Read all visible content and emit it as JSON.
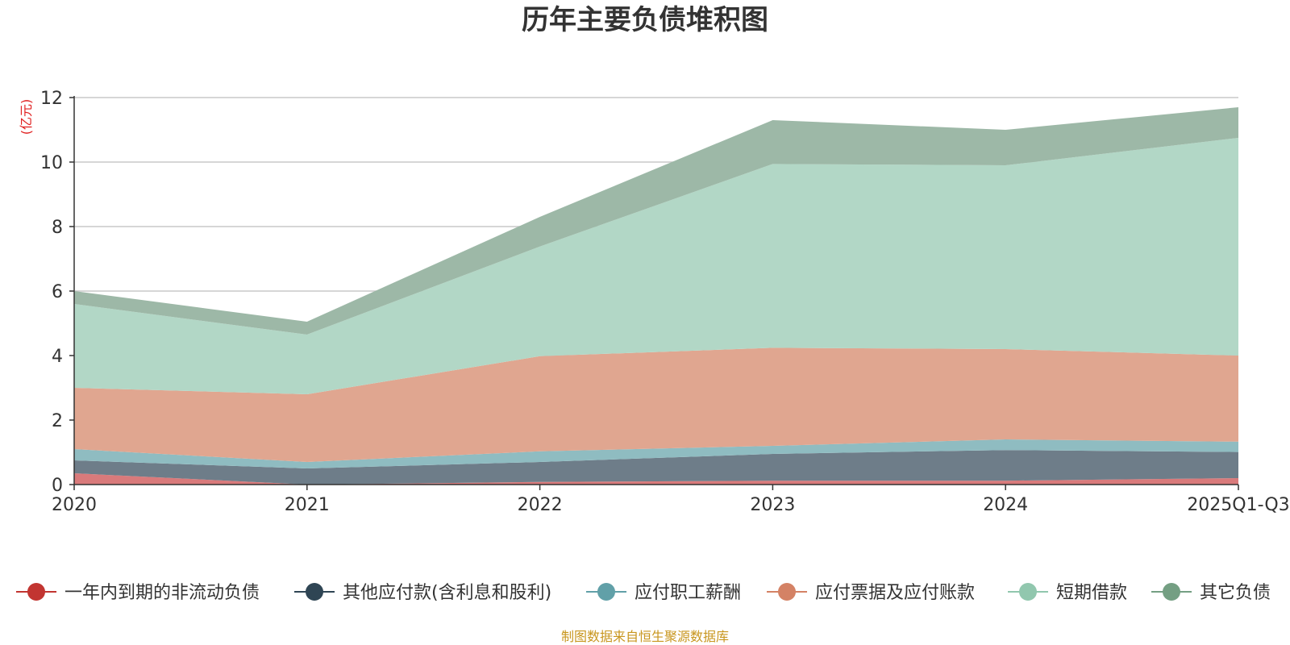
{
  "chart_data": {
    "type": "area",
    "stacked": true,
    "title": "历年主要负债堆积图",
    "ylabel": "(亿元)",
    "xlabel": "",
    "ylim": [
      0,
      12
    ],
    "yticks": [
      0,
      2,
      4,
      6,
      8,
      10,
      12
    ],
    "categories": [
      "2020",
      "2021",
      "2022",
      "2023",
      "2024",
      "2025Q1-Q3"
    ],
    "legend_position": "bottom",
    "grid": true,
    "series": [
      {
        "name": "一年内到期的非流动负债",
        "color": "#c23531",
        "area_color": "#d97a7b",
        "values": [
          0.35,
          0.0,
          0.08,
          0.12,
          0.12,
          0.2
        ]
      },
      {
        "name": "其他应付款(含利息和股利)",
        "color": "#2f4554",
        "area_color": "#6e7d89",
        "values": [
          0.4,
          0.5,
          0.62,
          0.83,
          0.95,
          0.81
        ]
      },
      {
        "name": "应付职工薪酬",
        "color": "#61a0a8",
        "area_color": "#8fbcc1",
        "values": [
          0.35,
          0.2,
          0.33,
          0.25,
          0.33,
          0.32
        ]
      },
      {
        "name": "应付票据及应付账款",
        "color": "#d48265",
        "area_color": "#e0a690",
        "values": [
          1.9,
          2.1,
          2.95,
          3.04,
          2.8,
          2.67
        ]
      },
      {
        "name": "短期借款",
        "color": "#91c7ae",
        "area_color": "#b2d7c6",
        "values": [
          2.6,
          1.85,
          3.4,
          5.7,
          5.7,
          6.75
        ]
      },
      {
        "name": "其它负债",
        "color": "#749f83",
        "area_color": "#9db8a7",
        "values": [
          0.4,
          0.4,
          0.92,
          1.36,
          1.1,
          0.95
        ]
      }
    ],
    "source": "制图数据来自恒生聚源数据库"
  }
}
